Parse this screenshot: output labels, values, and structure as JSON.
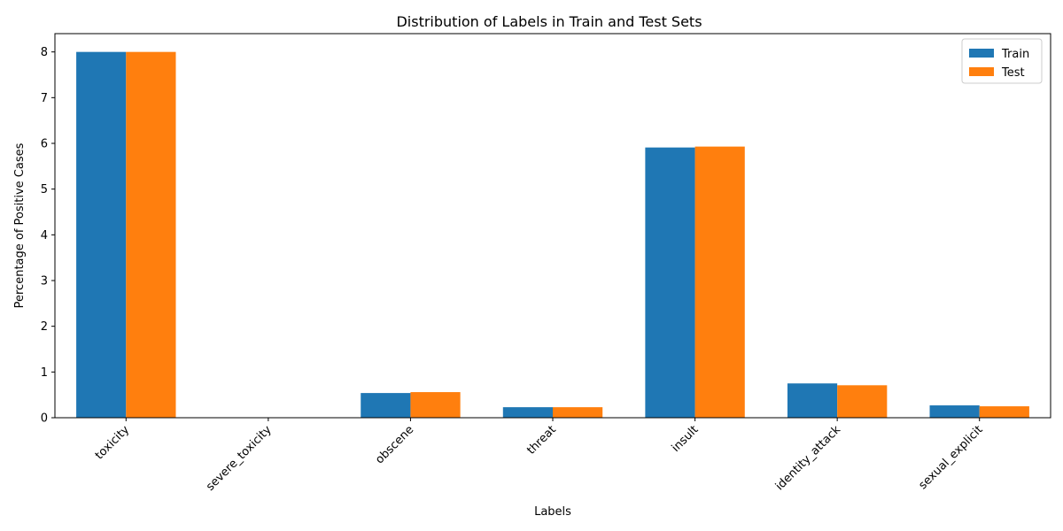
{
  "chart_data": {
    "type": "bar",
    "title": "Distribution of Labels in Train and Test Sets",
    "xlabel": "Labels",
    "ylabel": "Percentage of Positive Cases",
    "categories": [
      "toxicity",
      "severe_toxicity",
      "obscene",
      "threat",
      "insult",
      "identity_attack",
      "sexual_explicit"
    ],
    "series": [
      {
        "name": "Train",
        "color": "#1f77b4",
        "values": [
          8.0,
          0.0,
          0.54,
          0.23,
          5.91,
          0.75,
          0.27
        ]
      },
      {
        "name": "Test",
        "color": "#ff7f0e",
        "values": [
          8.0,
          0.0,
          0.56,
          0.23,
          5.93,
          0.71,
          0.25
        ]
      }
    ],
    "ylim": [
      0,
      8.4
    ],
    "yticks": [
      0,
      1,
      2,
      3,
      4,
      5,
      6,
      7,
      8
    ],
    "legend_position": "top-right",
    "grid": false
  }
}
